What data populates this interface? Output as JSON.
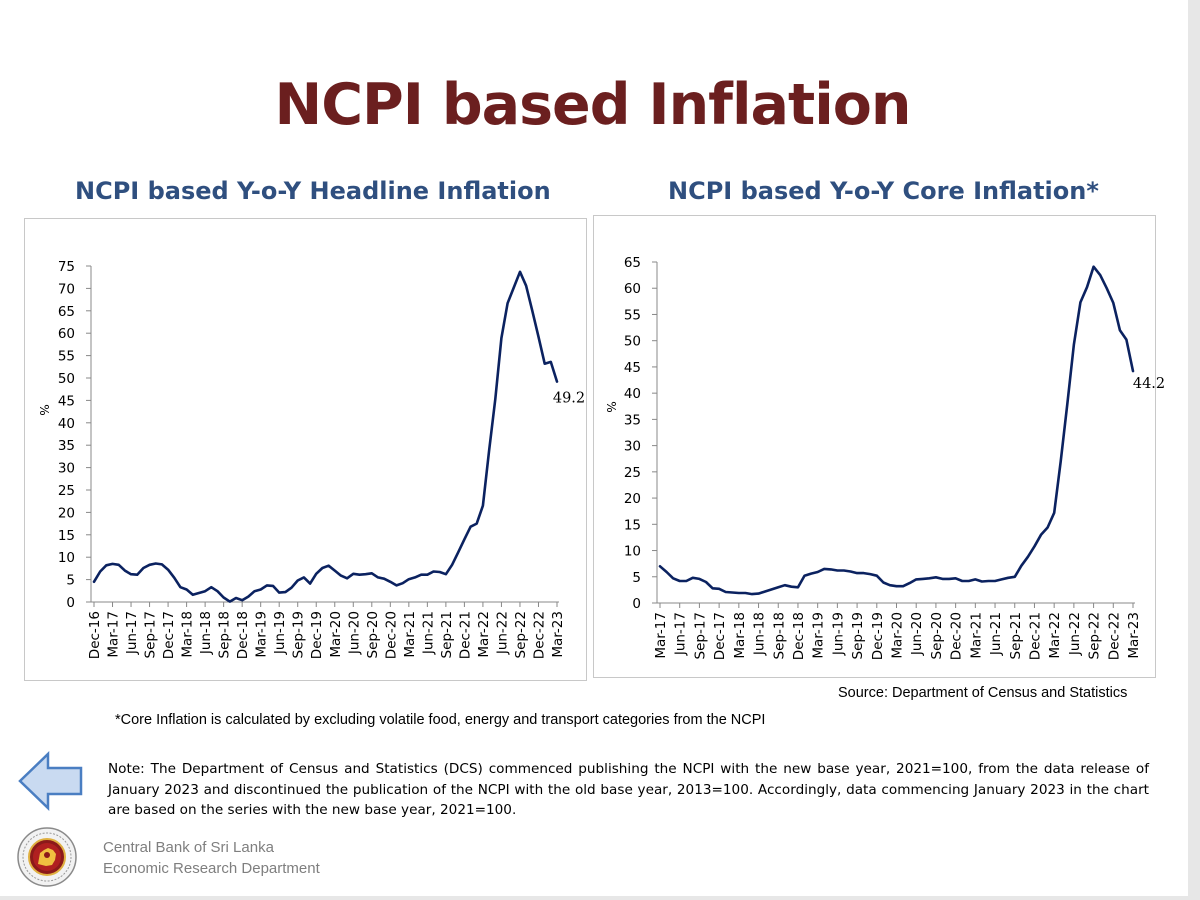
{
  "title": "NCPI based Inflation",
  "charts": [
    {
      "id": "headline",
      "title": "NCPI based Y-o-Y Headline Inflation",
      "ylabel": "%",
      "yticks": [
        "0",
        "5",
        "10",
        "15",
        "20",
        "25",
        "30",
        "35",
        "40",
        "45",
        "50",
        "55",
        "60",
        "65",
        "70",
        "75"
      ],
      "xticks": [
        "Dec-16",
        "Mar-17",
        "Jun-17",
        "Sep-17",
        "Dec-17",
        "Mar-18",
        "Jun-18",
        "Sep-18",
        "Dec-18",
        "Mar-19",
        "Jun-19",
        "Sep-19",
        "Dec-19",
        "Mar-20",
        "Jun-20",
        "Sep-20",
        "Dec-20",
        "Mar-21",
        "Jun-21",
        "Sep-21",
        "Dec-21",
        "Mar-22",
        "Jun-22",
        "Sep-22",
        "Dec-22",
        "Mar-23"
      ],
      "end_label": "49.2"
    },
    {
      "id": "core",
      "title": "NCPI based Y-o-Y Core Inflation*",
      "ylabel": "%",
      "yticks": [
        "0",
        "5",
        "10",
        "15",
        "20",
        "25",
        "30",
        "35",
        "40",
        "45",
        "50",
        "55",
        "60",
        "65"
      ],
      "xticks": [
        "Mar-17",
        "Jun-17",
        "Sep-17",
        "Dec-17",
        "Mar-18",
        "Jun-18",
        "Sep-18",
        "Dec-18",
        "Mar-19",
        "Jun-19",
        "Sep-19",
        "Dec-19",
        "Mar-20",
        "Jun-20",
        "Sep-20",
        "Dec-20",
        "Mar-21",
        "Jun-21",
        "Sep-21",
        "Dec-21",
        "Mar-22",
        "Jun-22",
        "Sep-22",
        "Dec-22",
        "Mar-23"
      ],
      "end_label": "44.2"
    }
  ],
  "chart_data": [
    {
      "type": "line",
      "title": "NCPI based Y-o-Y Headline Inflation",
      "ylabel": "%",
      "xlabel": "",
      "ylim": [
        0,
        75
      ],
      "x_start": "Dec-16",
      "x_end": "Mar-23",
      "series": [
        {
          "color": "#0b2260",
          "values": [
            4.5,
            6.8,
            8.2,
            8.5,
            8.3,
            7.0,
            6.2,
            6.1,
            7.6,
            8.3,
            8.6,
            8.4,
            7.2,
            5.4,
            3.3,
            2.8,
            1.6,
            2.0,
            2.4,
            3.3,
            2.4,
            1.0,
            0.1,
            0.9,
            0.4,
            1.2,
            2.4,
            2.8,
            3.7,
            3.6,
            2.1,
            2.2,
            3.2,
            4.8,
            5.5,
            4.1,
            6.3,
            7.6,
            8.1,
            7.0,
            5.9,
            5.3,
            6.3,
            6.1,
            6.2,
            6.4,
            5.5,
            5.2,
            4.5,
            3.7,
            4.2,
            5.1,
            5.5,
            6.1,
            6.1,
            6.8,
            6.7,
            6.2,
            8.3,
            11.1,
            14.0,
            16.8,
            17.5,
            21.5,
            33.8,
            45.3,
            58.9,
            66.7,
            70.2,
            73.7,
            70.6,
            65.0,
            59.2,
            53.2,
            53.6,
            49.2
          ]
        }
      ]
    },
    {
      "type": "line",
      "title": "NCPI based Y-o-Y Core Inflation*",
      "ylabel": "%",
      "xlabel": "",
      "ylim": [
        0,
        65
      ],
      "x_start": "Mar-17",
      "x_end": "Mar-23",
      "series": [
        {
          "color": "#0b2260",
          "values": [
            7.0,
            5.9,
            4.7,
            4.2,
            4.2,
            4.8,
            4.6,
            4.0,
            2.8,
            2.7,
            2.1,
            2.0,
            1.9,
            1.9,
            1.7,
            1.8,
            2.2,
            2.6,
            3.0,
            3.4,
            3.1,
            3.0,
            5.2,
            5.6,
            5.9,
            6.5,
            6.4,
            6.2,
            6.2,
            6.0,
            5.7,
            5.7,
            5.5,
            5.2,
            3.9,
            3.4,
            3.2,
            3.2,
            3.8,
            4.5,
            4.6,
            4.7,
            4.9,
            4.6,
            4.6,
            4.7,
            4.2,
            4.2,
            4.5,
            4.1,
            4.2,
            4.2,
            4.5,
            4.8,
            5.0,
            7.1,
            8.8,
            10.8,
            13.0,
            14.4,
            17.2,
            27.0,
            37.9,
            49.3,
            57.3,
            60.2,
            64.1,
            62.5,
            60.0,
            57.2,
            52.0,
            50.2,
            44.2
          ]
        }
      ]
    }
  ],
  "source": "Source: Department of Census and Statistics",
  "core_note": "*Core Inflation is calculated by excluding volatile food, energy and transport categories from the NCPI",
  "note": "Note: The Department of Census and Statistics (DCS) commenced publishing the NCPI with the new base year, 2021=100, from the data release of January 2023 and discontinued the publication of the NCPI with the old base year, 2013=100. Accordingly, data commencing January 2023 in the chart are based on the series with the new base year, 2021=100.",
  "footer": {
    "line1": "Central Bank of Sri Lanka",
    "line2": "Economic Research Department"
  },
  "icons": {
    "back": "left-arrow-icon",
    "logo": "central-bank-seal"
  },
  "colors": {
    "title": "#6b1f1f",
    "chart_title": "#2f4f7f",
    "line": "#0b2260",
    "arrow_fill": "#c9daf1",
    "arrow_stroke": "#4a7ec2"
  }
}
